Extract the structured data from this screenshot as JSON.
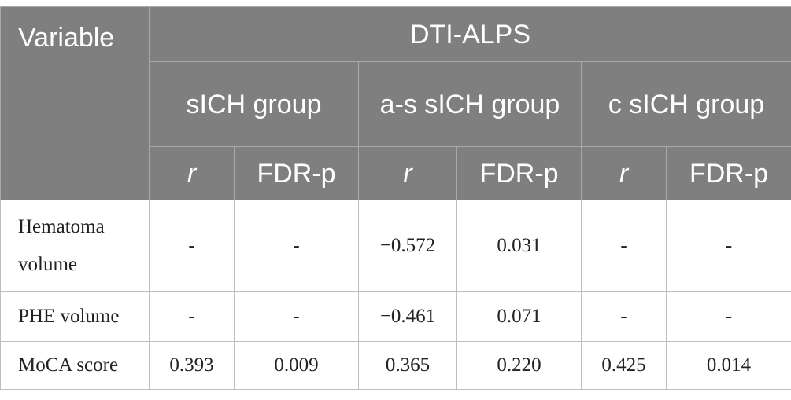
{
  "header": {
    "variable": "Variable",
    "measure": "DTI-ALPS",
    "groups": [
      "sICH group",
      "a-s sICH group",
      "c sICH group"
    ],
    "subcols": [
      "r",
      "FDR-p",
      "r",
      "FDR-p",
      "r",
      "FDR-p"
    ]
  },
  "rows": [
    {
      "label": "Hematoma volume",
      "values": [
        "-",
        "-",
        "−0.572",
        "0.031",
        "-",
        "-"
      ]
    },
    {
      "label": "PHE volume",
      "values": [
        "-",
        "-",
        "−0.461",
        "0.071",
        "-",
        "-"
      ]
    },
    {
      "label": "MoCA score",
      "values": [
        "0.393",
        "0.009",
        "0.365",
        "0.220",
        "0.425",
        "0.014"
      ]
    }
  ]
}
